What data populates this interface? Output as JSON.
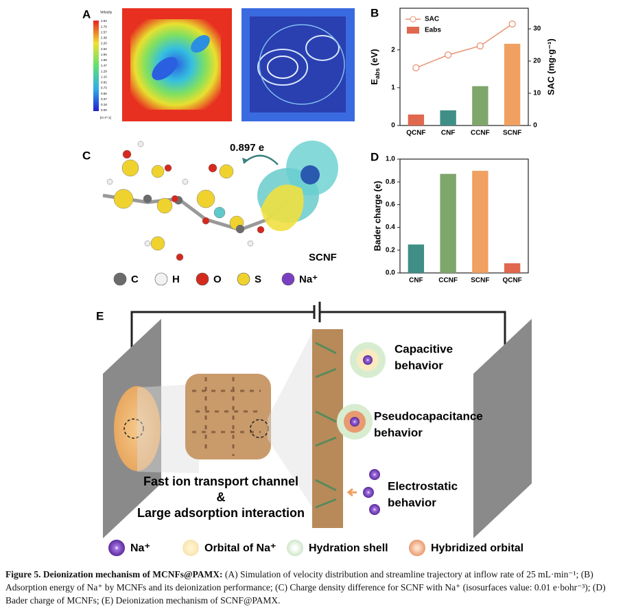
{
  "panel_a": {
    "label": "A",
    "colorbar_title": "Velocity",
    "colorbar_unit": "[m s^-1]",
    "colorbar_ticks": [
      "2.94",
      "2.76",
      "2.57",
      "2.39",
      "2.20",
      "2.02",
      "1.84",
      "1.65",
      "1.47",
      "1.29",
      "1.10",
      "0.92",
      "0.73",
      "0.55",
      "0.37",
      "0.18",
      "0.00"
    ]
  },
  "panel_b": {
    "label": "B",
    "chart_data": {
      "type": "combo",
      "categories": [
        "QCNF",
        "CNF",
        "CCNF",
        "SCNF"
      ],
      "series": [
        {
          "name": "SAC",
          "type": "line",
          "axis": "y2",
          "color": "#e8906e",
          "values": [
            17.9,
            21.9,
            24.7,
            31.5
          ]
        },
        {
          "name": "Eabs",
          "type": "bar",
          "axis": "y",
          "color": "#e0684e",
          "colors": [
            "#e0684e",
            "#3f8f86",
            "#7fa66b",
            "#f0a060"
          ],
          "values": [
            0.29,
            0.4,
            1.04,
            2.16
          ]
        }
      ],
      "y_label": {
        "main": "E",
        "sub": "abs",
        "unit": " (eV)"
      },
      "y2_label": "SAC (mg·g⁻¹)",
      "ylim": [
        0,
        3.1
      ],
      "yticks": [
        0,
        1,
        2
      ],
      "y2lim": [
        0,
        36.4
      ],
      "y2ticks": [
        0,
        10,
        20,
        30
      ],
      "legend": "upper-left"
    }
  },
  "panel_c": {
    "label": "C",
    "charge": "0.897 e",
    "molecule": "SCNF",
    "atoms": [
      {
        "symbol": "C",
        "color": "#6b6b6b"
      },
      {
        "symbol": "H",
        "color": "#f2f2f2"
      },
      {
        "symbol": "O",
        "color": "#d42a1e"
      },
      {
        "symbol": "S",
        "color": "#f0d22e"
      },
      {
        "symbol": "Na⁺",
        "color": "#7a3fc0"
      }
    ]
  },
  "panel_d": {
    "label": "D",
    "chart_data": {
      "type": "bar",
      "categories": [
        "CNF",
        "CCNF",
        "SCNF",
        "QCNF"
      ],
      "values": [
        0.25,
        0.87,
        0.897,
        0.085
      ],
      "colors": [
        "#3f8f86",
        "#7fa66b",
        "#f0a060",
        "#e0684e"
      ],
      "y_label": "Bader charge (e)",
      "ylim": [
        0,
        1.0
      ],
      "yticks": [
        {
          "value": 0,
          "label": "0.0"
        },
        0.2,
        0.4,
        0.6,
        0.8,
        {
          "value": 1.0,
          "label": "1.0"
        }
      ]
    }
  },
  "panel_e": {
    "label": "E",
    "behaviors": [
      [
        "Capacitive",
        "behavior"
      ],
      [
        "Pseudocapacitance",
        "behavior"
      ],
      [
        "Electrostatic",
        "behavior"
      ]
    ],
    "channel": [
      "Fast ion transport channel",
      "&",
      "Large adsorption interaction"
    ],
    "legend": [
      "Na⁺",
      "Orbital of Na⁺",
      "Hydration shell",
      "Hybridized orbital"
    ]
  },
  "caption": {
    "bold": "Figure 5. Deionization mechanism of MCNFs@PAMX:",
    "text": " (A) Simulation of velocity distribution and streamline trajectory at inflow rate of 25 mL·min⁻¹; (B) Adsorption energy of Na⁺ by MCNFs and its deionization performance; (C) Charge density difference for SCNF with Na⁺ (isosurfaces value: 0.01 e·bohr⁻³); (D) Bader charge of MCNFs; (E) Deionization mechanism of SCNF@PAMX."
  }
}
